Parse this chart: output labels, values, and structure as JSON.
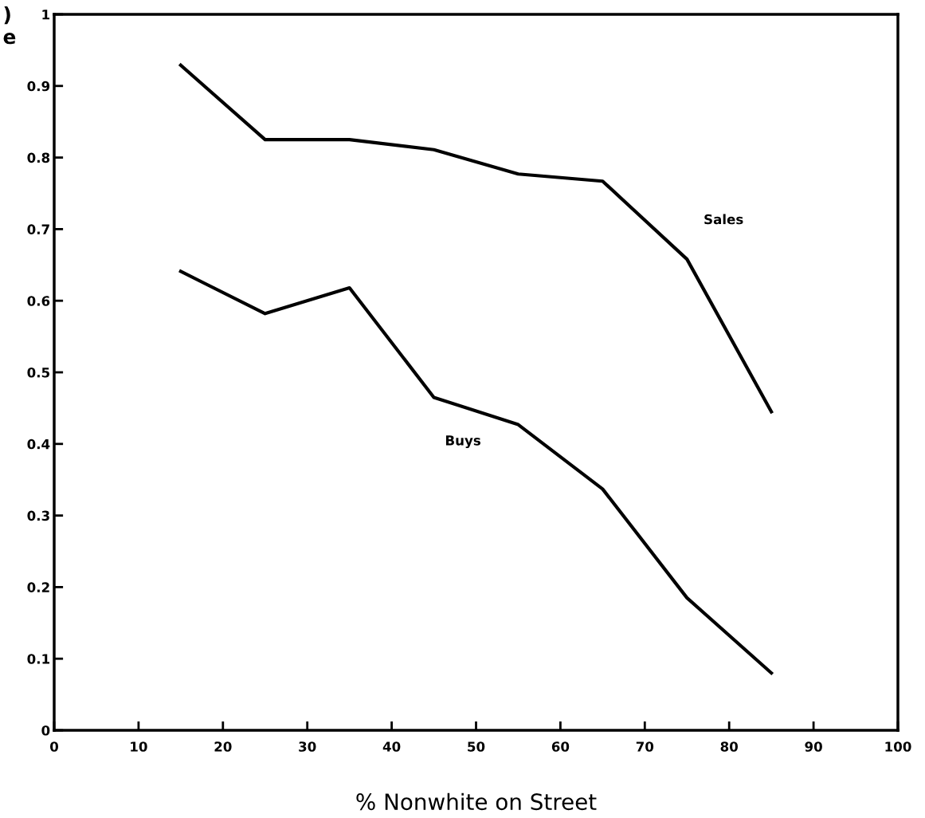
{
  "chart_data": {
    "type": "line",
    "xlabel": "% Nonwhite on Street",
    "x": [
      15,
      25,
      35,
      45,
      55,
      65,
      75,
      85
    ],
    "series": [
      {
        "name": "Sales",
        "color": "#000000",
        "values": [
          0.929,
          0.825,
          0.825,
          0.811,
          0.777,
          0.767,
          0.658,
          0.445
        ]
      },
      {
        "name": "Buys",
        "color": "#000000",
        "values": [
          0.641,
          0.582,
          0.618,
          0.465,
          0.427,
          0.337,
          0.185,
          0.08
        ]
      }
    ],
    "xlim": [
      0,
      100
    ],
    "xticks": [
      0,
      10,
      20,
      30,
      40,
      50,
      60,
      70,
      80,
      90,
      100
    ],
    "ylim": [
      0,
      1
    ],
    "yticks": [
      0,
      0.1,
      0.2,
      0.3,
      0.4,
      0.5,
      0.6,
      0.7,
      0.8,
      0.9,
      1
    ],
    "annotations": [
      ")",
      "e"
    ],
    "grid": false,
    "legend": false,
    "marker": "none",
    "line_style": "solid"
  }
}
